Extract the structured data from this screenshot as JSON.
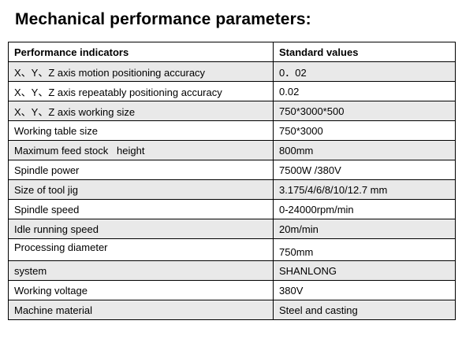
{
  "title": "Mechanical performance parameters:",
  "table": {
    "headers": [
      "Performance indicators",
      "Standard values"
    ],
    "rows": [
      {
        "indicator": "X、Y、Z axis motion positioning accuracy",
        "value": "0．02"
      },
      {
        "indicator": "X、Y、Z axis repeatably positioning accuracy",
        "value": "0.02"
      },
      {
        "indicator": "X、Y、Z axis working size",
        "value": "750*3000*500"
      },
      {
        "indicator": "Working table size",
        "value": "750*3000"
      },
      {
        "indicator": "Maximum feed stock   height",
        "value": "800mm"
      },
      {
        "indicator": "Spindle power",
        "value": "7500W /380V"
      },
      {
        "indicator": "Size of tool jig",
        "value": "3.175/4/6/8/10/12.7 mm"
      },
      {
        "indicator": "Spindle speed",
        "value": "0-24000rpm/min"
      },
      {
        "indicator": "Idle running speed",
        "value": "20m/min"
      },
      {
        "indicator": "Processing diameter",
        "value": "750mm"
      },
      {
        "indicator": "system",
        "value": "SHANLONG"
      },
      {
        "indicator": "Working voltage",
        "value": "380V"
      },
      {
        "indicator": "Machine material",
        "value": "Steel and casting"
      }
    ]
  },
  "colors": {
    "shaded_row": "#e9e9e9",
    "border": "#000000"
  }
}
